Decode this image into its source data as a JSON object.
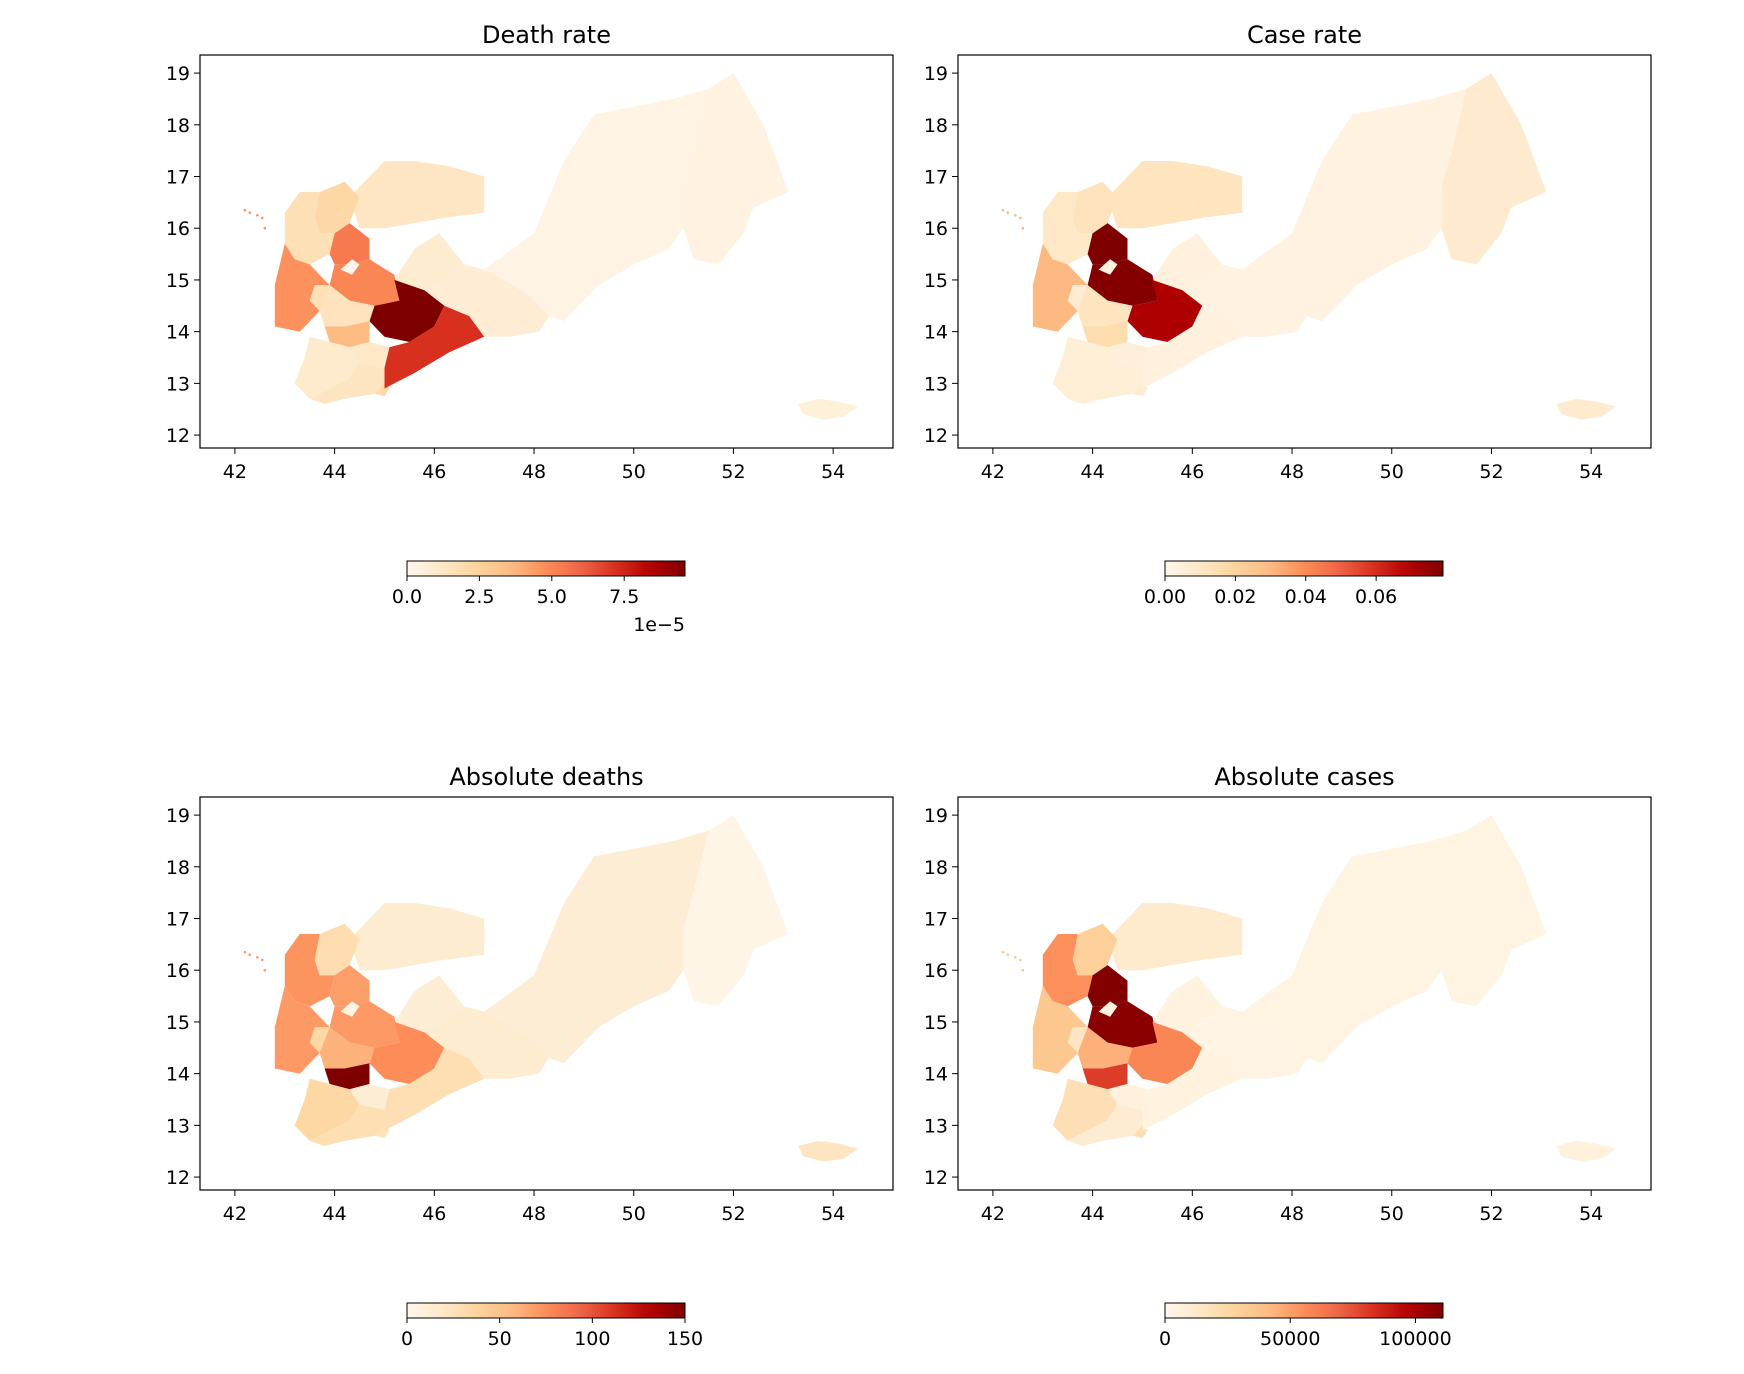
{
  "chart_data": [
    {
      "type": "choropleth",
      "title": "Death rate",
      "xticks": [
        42,
        44,
        46,
        48,
        50,
        52,
        54
      ],
      "yticks": [
        12,
        13,
        14,
        15,
        16,
        17,
        18,
        19
      ],
      "xlim": [
        41.3,
        55.2
      ],
      "ylim": [
        11.75,
        19.35
      ],
      "colormap": "OrRd",
      "colorbar": {
        "ticks": [
          0.0,
          2.5,
          5.0,
          7.5
        ],
        "tick_labels": [
          "0.0",
          "2.5",
          "5.0",
          "7.5"
        ],
        "range": [
          0,
          9.6
        ],
        "offset_text": "1e−5"
      },
      "regions": [
        {
          "id": "hadramaut",
          "value": 0.3
        },
        {
          "id": "mahrah",
          "value": 0.4
        },
        {
          "id": "shabwah",
          "value": 0.8
        },
        {
          "id": "marib",
          "value": 0.9
        },
        {
          "id": "al-jawf",
          "value": 1.3
        },
        {
          "id": "saadah",
          "value": 2.2
        },
        {
          "id": "hajjah",
          "value": 1.7
        },
        {
          "id": "amran",
          "value": 5.4
        },
        {
          "id": "sanaa",
          "value": 5.0
        },
        {
          "id": "sanaa-city",
          "value": 0.1
        },
        {
          "id": "al-bayda",
          "value": 9.6
        },
        {
          "id": "abyan",
          "value": 7.2
        },
        {
          "id": "hudaydah",
          "value": 4.7
        },
        {
          "id": "raymah",
          "value": 1.7
        },
        {
          "id": "dhamar",
          "value": 1.5
        },
        {
          "id": "ibb",
          "value": 3.6
        },
        {
          "id": "taizz",
          "value": 1.0
        },
        {
          "id": "dhale",
          "value": 1.2
        },
        {
          "id": "lahij",
          "value": 1.4
        },
        {
          "id": "aden",
          "value": 2.0
        },
        {
          "id": "socotra",
          "value": 0.6
        }
      ]
    },
    {
      "type": "choropleth",
      "title": "Case rate",
      "xticks": [
        42,
        44,
        46,
        48,
        50,
        52,
        54
      ],
      "yticks": [
        12,
        13,
        14,
        15,
        16,
        17,
        18,
        19
      ],
      "xlim": [
        41.3,
        55.2
      ],
      "ylim": [
        11.75,
        19.35
      ],
      "colormap": "OrRd",
      "colorbar": {
        "ticks": [
          0.0,
          0.02,
          0.04,
          0.06
        ],
        "tick_labels": [
          "0.00",
          "0.02",
          "0.04",
          "0.06"
        ],
        "range": [
          0,
          0.079
        ],
        "offset_text": ""
      },
      "regions": [
        {
          "id": "hadramaut",
          "value": 0.003
        },
        {
          "id": "mahrah",
          "value": 0.008
        },
        {
          "id": "shabwah",
          "value": 0.003
        },
        {
          "id": "marib",
          "value": 0.004
        },
        {
          "id": "al-jawf",
          "value": 0.012
        },
        {
          "id": "saadah",
          "value": 0.013
        },
        {
          "id": "hajjah",
          "value": 0.01
        },
        {
          "id": "amran",
          "value": 0.079
        },
        {
          "id": "sanaa",
          "value": 0.078
        },
        {
          "id": "sanaa-city",
          "value": 0.003
        },
        {
          "id": "al-bayda",
          "value": 0.07
        },
        {
          "id": "abyan",
          "value": 0.004
        },
        {
          "id": "hudaydah",
          "value": 0.03
        },
        {
          "id": "raymah",
          "value": 0.007
        },
        {
          "id": "dhamar",
          "value": 0.012
        },
        {
          "id": "ibb",
          "value": 0.016
        },
        {
          "id": "taizz",
          "value": 0.006
        },
        {
          "id": "dhale",
          "value": 0.005
        },
        {
          "id": "lahij",
          "value": 0.006
        },
        {
          "id": "aden",
          "value": 0.007
        },
        {
          "id": "socotra",
          "value": 0.008
        }
      ]
    },
    {
      "type": "choropleth",
      "title": "Absolute deaths",
      "xticks": [
        42,
        44,
        46,
        48,
        50,
        52,
        54
      ],
      "yticks": [
        12,
        13,
        14,
        15,
        16,
        17,
        18,
        19
      ],
      "xlim": [
        41.3,
        55.2
      ],
      "ylim": [
        11.75,
        19.35
      ],
      "colormap": "OrRd",
      "colorbar": {
        "ticks": [
          0,
          50,
          100,
          150
        ],
        "tick_labels": [
          "0",
          "50",
          "100",
          "150"
        ],
        "range": [
          0,
          150
        ],
        "offset_text": ""
      },
      "regions": [
        {
          "id": "hadramaut",
          "value": 12
        },
        {
          "id": "mahrah",
          "value": 3
        },
        {
          "id": "shabwah",
          "value": 14
        },
        {
          "id": "marib",
          "value": 12
        },
        {
          "id": "al-jawf",
          "value": 14
        },
        {
          "id": "saadah",
          "value": 30
        },
        {
          "id": "hajjah",
          "value": 72
        },
        {
          "id": "amran",
          "value": 68
        },
        {
          "id": "sanaa",
          "value": 70
        },
        {
          "id": "sanaa-city",
          "value": 5
        },
        {
          "id": "al-bayda",
          "value": 75
        },
        {
          "id": "abyan",
          "value": 28
        },
        {
          "id": "hudaydah",
          "value": 70
        },
        {
          "id": "raymah",
          "value": 35
        },
        {
          "id": "dhamar",
          "value": 60
        },
        {
          "id": "ibb",
          "value": 150
        },
        {
          "id": "taizz",
          "value": 35
        },
        {
          "id": "dhale",
          "value": 12
        },
        {
          "id": "lahij",
          "value": 28
        },
        {
          "id": "aden",
          "value": 24
        },
        {
          "id": "socotra",
          "value": 22
        }
      ]
    },
    {
      "type": "choropleth",
      "title": "Absolute cases",
      "xticks": [
        42,
        44,
        46,
        48,
        50,
        52,
        54
      ],
      "yticks": [
        12,
        13,
        14,
        15,
        16,
        17,
        18,
        19
      ],
      "xlim": [
        41.3,
        55.2
      ],
      "ylim": [
        11.75,
        19.35
      ],
      "colormap": "OrRd",
      "colorbar": {
        "ticks": [
          0,
          50000,
          100000
        ],
        "tick_labels": [
          "0",
          "50000",
          "100000"
        ],
        "range": [
          0,
          111000
        ],
        "offset_text": ""
      },
      "regions": [
        {
          "id": "hadramaut",
          "value": 4000
        },
        {
          "id": "mahrah",
          "value": 4000
        },
        {
          "id": "shabwah",
          "value": 3000
        },
        {
          "id": "marib",
          "value": 5000
        },
        {
          "id": "al-jawf",
          "value": 12000
        },
        {
          "id": "saadah",
          "value": 30000
        },
        {
          "id": "hajjah",
          "value": 55000
        },
        {
          "id": "amran",
          "value": 110000
        },
        {
          "id": "sanaa",
          "value": 108000
        },
        {
          "id": "sanaa-city",
          "value": 4000
        },
        {
          "id": "al-bayda",
          "value": 58000
        },
        {
          "id": "abyan",
          "value": 5000
        },
        {
          "id": "hudaydah",
          "value": 35000
        },
        {
          "id": "raymah",
          "value": 15000
        },
        {
          "id": "dhamar",
          "value": 45000
        },
        {
          "id": "ibb",
          "value": 80000
        },
        {
          "id": "taizz",
          "value": 20000
        },
        {
          "id": "dhale",
          "value": 6000
        },
        {
          "id": "lahij",
          "value": 10000
        },
        {
          "id": "aden",
          "value": 20000
        },
        {
          "id": "socotra",
          "value": 6000
        }
      ]
    }
  ]
}
